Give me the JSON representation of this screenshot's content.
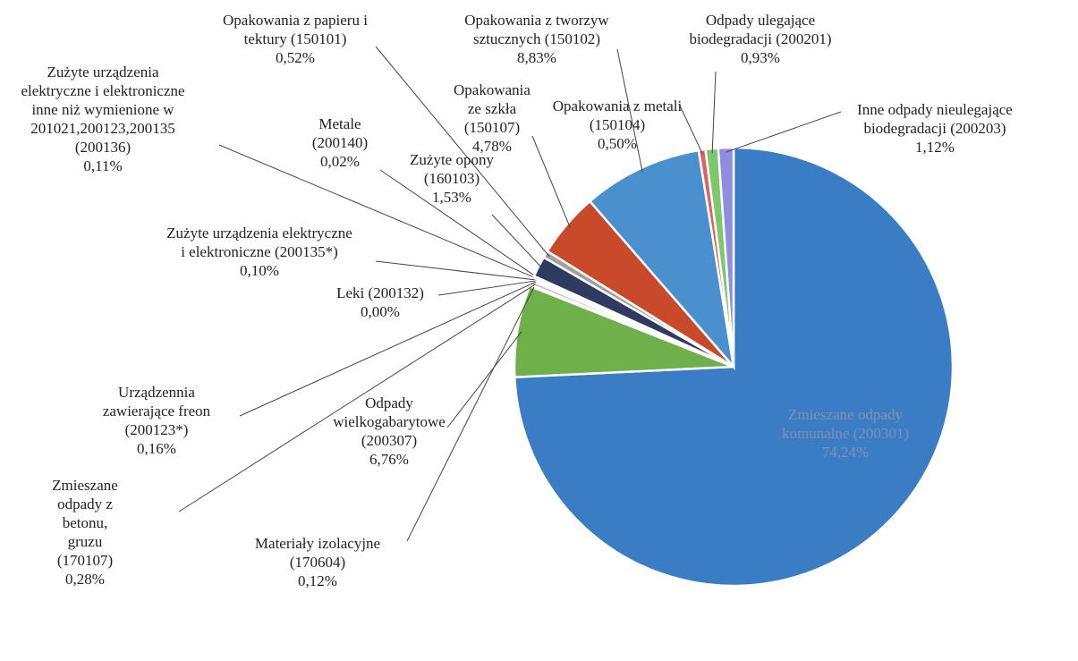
{
  "chart_data": {
    "type": "pie",
    "categories": [
      "Zmieszane odpady komunalne (200301)",
      "Odpady wielkogabarytowe (200307)",
      "Materiały izolacyjne (170604)",
      "Zmieszane odpady z betonu, gruzu (170107)",
      "Urządzennia zawierające freon (200123*)",
      "Leki (200132)",
      "Zużyte urządzenia elektryczne i elektroniczne (200135*)",
      "Zużyte urządzenia elektryczne i elektroniczne inne niż wymienione w 201021,200123,200135 (200136)",
      "Metale (200140)",
      "Zużyte opony (160103)",
      "Opakowania z papieru i tektury (150101)",
      "Opakowania ze szkła (150107)",
      "Opakowania z tworzyw sztucznych (150102)",
      "Opakowania z metali (150104)",
      "Odpady ulegające biodegradacji (200201)",
      "Inne odpady nieulegające biodegradacji (200203)"
    ],
    "values": [
      74.24,
      6.76,
      0.12,
      0.28,
      0.16,
      0.0,
      0.1,
      0.11,
      0.02,
      1.53,
      0.52,
      4.78,
      8.83,
      0.5,
      0.93,
      1.12
    ],
    "value_labels": [
      "74,24%",
      "6,76%",
      "0,12%",
      "0,28%",
      "0,16%",
      "0,00%",
      "0,10%",
      "0,11%",
      "0,02%",
      "1,53%",
      "0,52%",
      "4,78%",
      "8,83%",
      "0,50%",
      "0,93%",
      "1,12%"
    ],
    "colors": [
      "#3b7dc4",
      "#6fb04a",
      "#bbbbbb",
      "#bbbbbb",
      "#bbbbbb",
      "#bbbbbb",
      "#bbbbbb",
      "#bbbbbb",
      "#bbbbbb",
      "#2e3a60",
      "#a0a0a0",
      "#c84a2b",
      "#4a90cf",
      "#e06262",
      "#7cc86a",
      "#8e8ee0"
    ]
  }
}
